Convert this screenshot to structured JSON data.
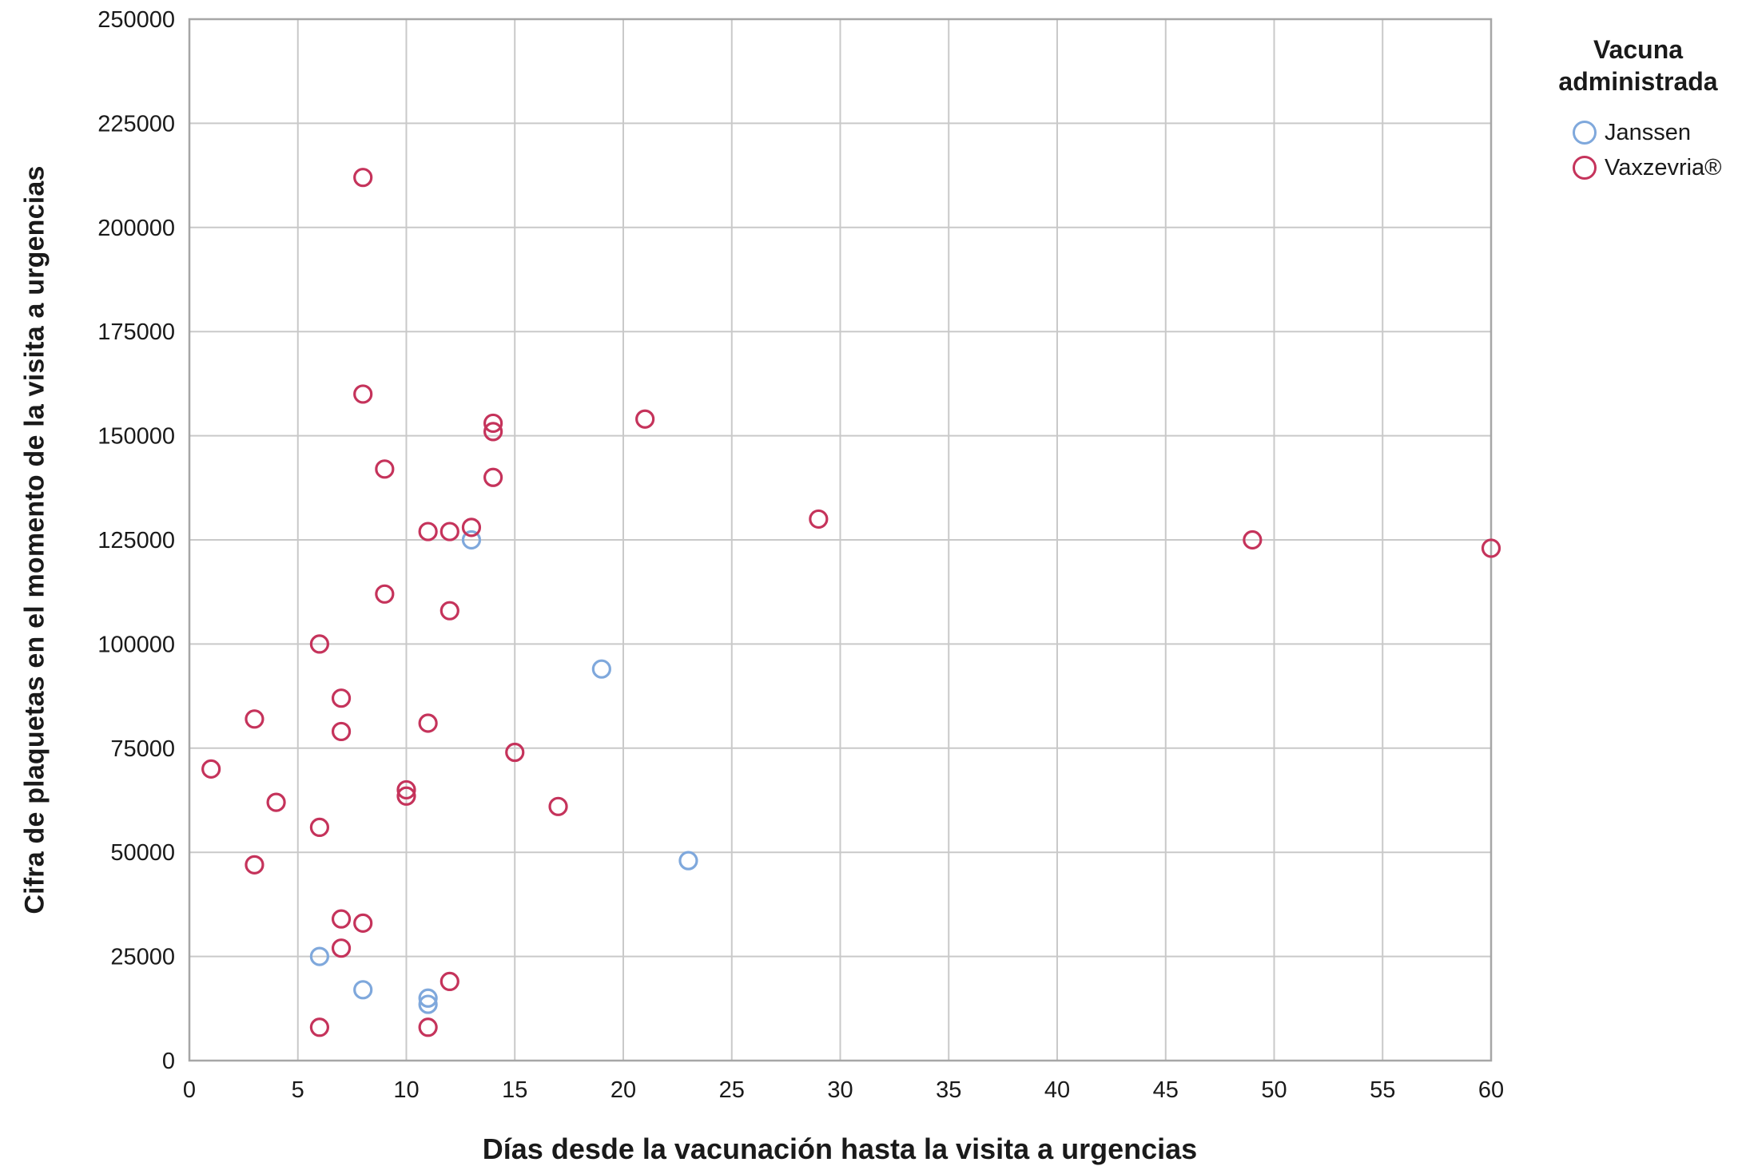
{
  "chart_data": {
    "type": "scatter",
    "title": "",
    "xlabel": "Días desde la vacunación hasta la visita a urgencias",
    "ylabel": "Cifra de plaquetas en el momento de la visita a urgencias",
    "xlim": [
      0,
      60
    ],
    "ylim": [
      0,
      250000
    ],
    "xticks": [
      0,
      5,
      10,
      15,
      20,
      25,
      30,
      35,
      40,
      45,
      50,
      55,
      60
    ],
    "yticks": [
      0,
      25000,
      50000,
      75000,
      100000,
      125000,
      150000,
      175000,
      200000,
      225000,
      250000
    ],
    "grid": true,
    "grid_color": "#c9c9c9",
    "frame_color": "#a6a6a6",
    "legend_title": "Vacuna administrada",
    "legend_position": "outside-top-right",
    "series": [
      {
        "name": "Janssen",
        "color": "#7FA8DC",
        "points": [
          [
            6,
            25000
          ],
          [
            8,
            17000
          ],
          [
            11,
            15000
          ],
          [
            11,
            13500
          ],
          [
            13,
            125000
          ],
          [
            19,
            94000
          ],
          [
            23,
            48000
          ]
        ]
      },
      {
        "name": "Vaxzevria®",
        "color": "#C5335B",
        "points": [
          [
            1,
            70000
          ],
          [
            3,
            82000
          ],
          [
            3,
            47000
          ],
          [
            4,
            62000
          ],
          [
            6,
            100000
          ],
          [
            6,
            56000
          ],
          [
            6,
            8000
          ],
          [
            7,
            87000
          ],
          [
            7,
            79000
          ],
          [
            7,
            34000
          ],
          [
            7,
            27000
          ],
          [
            8,
            212000
          ],
          [
            8,
            160000
          ],
          [
            8,
            33000
          ],
          [
            9,
            142000
          ],
          [
            9,
            112000
          ],
          [
            10,
            65000
          ],
          [
            10,
            63500
          ],
          [
            11,
            127000
          ],
          [
            11,
            81000
          ],
          [
            11,
            8000
          ],
          [
            12,
            127000
          ],
          [
            12,
            108000
          ],
          [
            12,
            19000
          ],
          [
            13,
            128000
          ],
          [
            14,
            153000
          ],
          [
            14,
            151000
          ],
          [
            14,
            140000
          ],
          [
            15,
            74000
          ],
          [
            17,
            61000
          ],
          [
            21,
            154000
          ],
          [
            29,
            130000
          ],
          [
            49,
            125000
          ],
          [
            60,
            123000
          ]
        ]
      }
    ]
  }
}
